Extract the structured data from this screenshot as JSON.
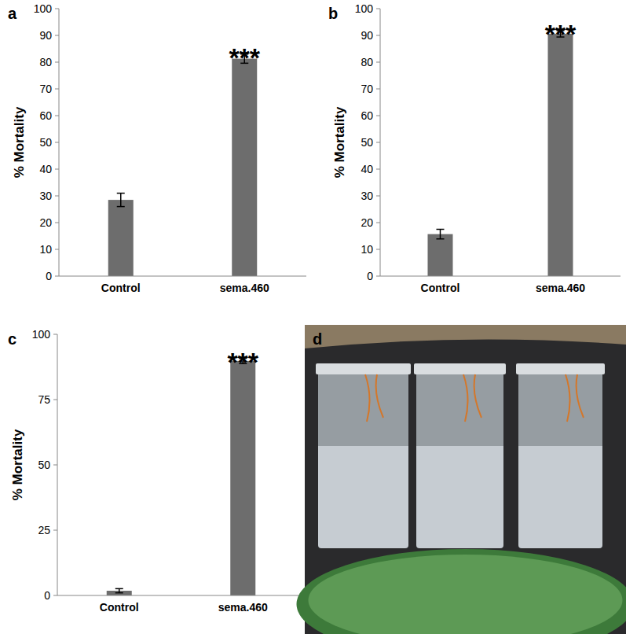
{
  "chart_data": [
    {
      "type": "bar",
      "panel_label": "a",
      "y_label": "% Mortality",
      "categories": [
        "Control",
        "sema.460"
      ],
      "values": [
        28.5,
        81.3
      ],
      "errors": [
        2.5,
        1.7
      ],
      "color": "#6d6d6d",
      "ylim": [
        0,
        100
      ],
      "yticks": [
        0,
        10,
        20,
        30,
        40,
        50,
        60,
        70,
        80,
        90,
        100
      ],
      "grid": false,
      "annotations": [
        {
          "text": "***",
          "category": "sema.460"
        }
      ]
    },
    {
      "type": "bar",
      "panel_label": "b",
      "y_label": "% Mortality",
      "categories": [
        "Control",
        "sema.460"
      ],
      "values": [
        15.7,
        90.6
      ],
      "errors": [
        1.8,
        1.2
      ],
      "color": "#6d6d6d",
      "ylim": [
        0,
        100
      ],
      "yticks": [
        0,
        10,
        20,
        30,
        40,
        50,
        60,
        70,
        80,
        90,
        100
      ],
      "grid": false,
      "annotations": [
        {
          "text": "***",
          "category": "sema.460"
        }
      ]
    },
    {
      "type": "bar",
      "panel_label": "c",
      "y_label": "% Mortality",
      "categories": [
        "Control",
        "sema.460"
      ],
      "values": [
        1.8,
        89.8
      ],
      "errors": [
        0.8,
        1.0
      ],
      "color": "#6d6d6d",
      "ylim": [
        0,
        100
      ],
      "yticks": [
        0,
        25,
        50,
        75,
        100
      ],
      "grid": false,
      "annotations": [
        {
          "text": "***",
          "category": "sema.460"
        }
      ]
    }
  ],
  "photo": {
    "panel_label": "d"
  }
}
